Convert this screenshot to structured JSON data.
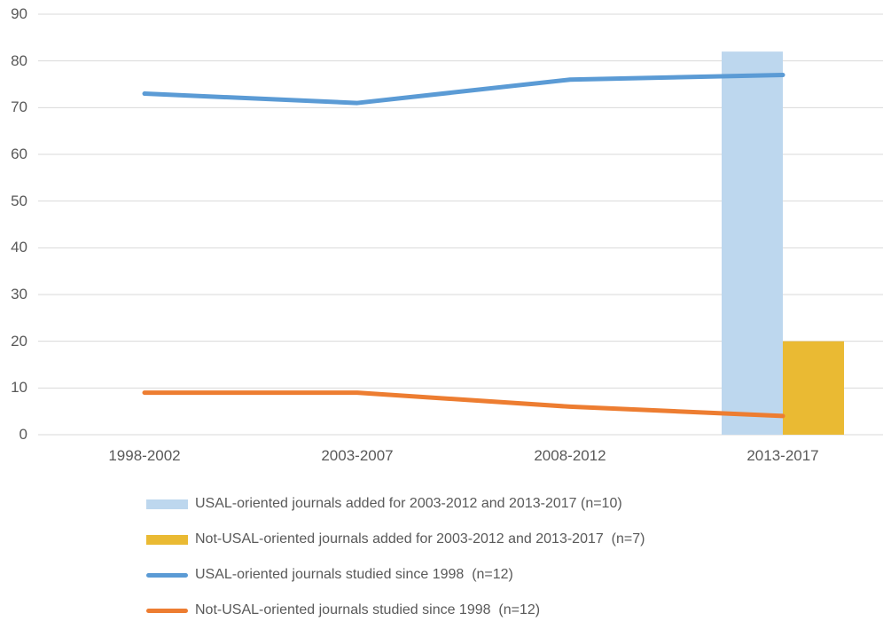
{
  "chart_data": {
    "type": "combo",
    "title": "",
    "xlabel": "",
    "ylabel": "",
    "categories": [
      "1998-2002",
      "2003-2007",
      "2008-2012",
      "2013-2017"
    ],
    "series": [
      {
        "name": "USAL-oriented journals added for 2003-2012 and 2013-2017 (n=10)",
        "type": "bar",
        "color": "#BDD7EE",
        "values": [
          null,
          null,
          null,
          82
        ]
      },
      {
        "name": "Not-USAL-oriented journals added for 2003-2012 and 2013-2017  (n=7)",
        "type": "bar",
        "color": "#EABA33",
        "values": [
          null,
          null,
          null,
          20
        ]
      },
      {
        "name": "USAL-oriented journals studied since 1998  (n=12)",
        "type": "line",
        "color": "#5B9BD5",
        "values": [
          73,
          71,
          76,
          77
        ]
      },
      {
        "name": "Not-USAL-oriented journals studied since 1998  (n=12)",
        "type": "line",
        "color": "#ED7D31",
        "values": [
          9,
          9,
          6,
          4
        ]
      }
    ],
    "ylim": [
      0,
      90
    ],
    "yticks": [
      0,
      10,
      20,
      30,
      40,
      50,
      60,
      70,
      80,
      90
    ],
    "grid": true,
    "legend_position": "bottom-left",
    "colors": {
      "grid": "#D9D9D9",
      "text": "#595959",
      "background": "#FFFFFF"
    }
  }
}
